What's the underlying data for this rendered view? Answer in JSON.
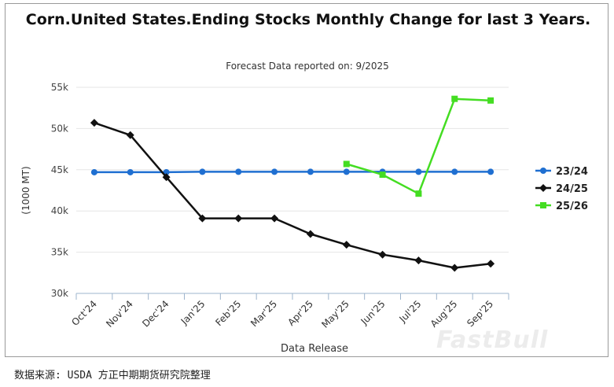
{
  "chart_data": {
    "type": "line",
    "title": "Corn.United States.Ending Stocks Monthly Change for last 3 Years.",
    "subtitle": "Forecast Data reported on: 9/2025",
    "xlabel": "Data Release",
    "ylabel": "(1000 MT)",
    "ylim": [
      30000,
      55000
    ],
    "yticks": [
      30000,
      35000,
      40000,
      45000,
      50000,
      55000
    ],
    "ytick_labels": [
      "30k",
      "35k",
      "40k",
      "45k",
      "50k",
      "55k"
    ],
    "categories": [
      "Oct'24",
      "Nov'24",
      "Dec'24",
      "Jan'25",
      "Feb'25",
      "Mar'25",
      "Apr'25",
      "May'25",
      "Jun'25",
      "Jul'25",
      "Aug'25",
      "Sep'25"
    ],
    "legend_position": "right",
    "grid": true,
    "series": [
      {
        "name": "23/24",
        "color": "#1f6fd1",
        "marker": "circle",
        "values": [
          44700,
          44700,
          44700,
          44750,
          44750,
          44750,
          44750,
          44750,
          44750,
          44750,
          44750,
          44750
        ]
      },
      {
        "name": "24/25",
        "color": "#111111",
        "marker": "diamond",
        "values": [
          50700,
          49200,
          44100,
          39100,
          39100,
          39100,
          37200,
          35900,
          34700,
          34000,
          33100,
          33600
        ]
      },
      {
        "name": "25/26",
        "color": "#44dd22",
        "marker": "square",
        "values": [
          null,
          null,
          null,
          null,
          null,
          null,
          null,
          45700,
          44400,
          42100,
          53600,
          53400
        ]
      }
    ]
  },
  "footer": {
    "source": "数据来源: USDA 方正中期期货研究院整理"
  },
  "watermark": {
    "text": "FastBull"
  }
}
